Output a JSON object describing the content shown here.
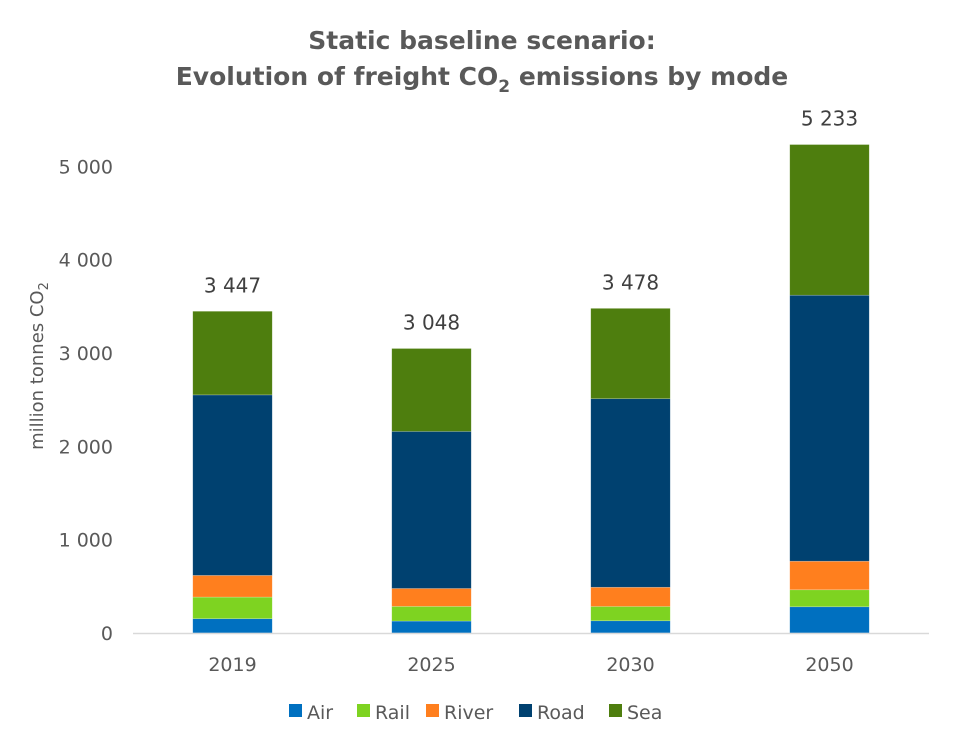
{
  "chart_data": {
    "type": "bar",
    "stacked": true,
    "title_line1": "Static baseline scenario:",
    "title_line2_pre": "Evolution of freight CO",
    "title_line2_sub": "2",
    "title_line2_post": " emissions by mode",
    "ylabel_pre": "million tonnes CO",
    "ylabel_sub": "2",
    "xlabel": "",
    "ylim": [
      0,
      5000
    ],
    "yticks": [
      0,
      1000,
      2000,
      3000,
      4000,
      5000
    ],
    "ytick_labels": [
      "0",
      "1 000",
      "2 000",
      "3 000",
      "4 000",
      "5 000"
    ],
    "grid": false,
    "legend_position": "bottom",
    "categories": [
      "2019",
      "2025",
      "2030",
      "2050"
    ],
    "totals": [
      3447,
      3048,
      3478,
      5233
    ],
    "total_labels": [
      "3 447",
      "3 048",
      "3 478",
      "5 233"
    ],
    "series": [
      {
        "name": "Air",
        "color": "#0070C0",
        "values": [
          153,
          128,
          131,
          281
        ]
      },
      {
        "name": "Rail",
        "color": "#7ED321",
        "values": [
          232,
          157,
          153,
          182
        ]
      },
      {
        "name": "River",
        "color": "#FF7F1E",
        "values": [
          232,
          192,
          206,
          306
        ]
      },
      {
        "name": "Road",
        "color": "#004170",
        "values": [
          1934,
          1682,
          2020,
          2850
        ]
      },
      {
        "name": "Sea",
        "color": "#4E7E0E",
        "values": [
          896,
          889,
          968,
          1614
        ]
      }
    ]
  }
}
